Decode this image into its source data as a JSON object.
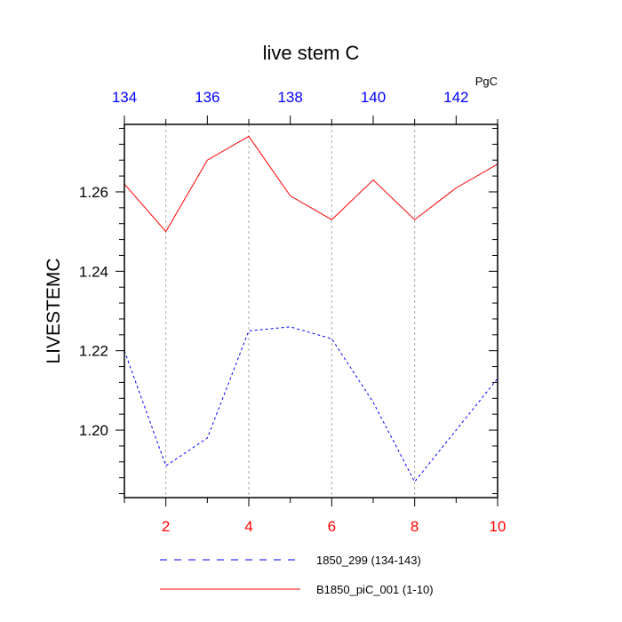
{
  "chart_data": {
    "type": "line",
    "title": "live stem C",
    "ylabel": "LIVESTEMC",
    "units": "PgC",
    "xlim": [
      1,
      10
    ],
    "ylim": [
      1.183,
      1.277
    ],
    "x_ticks": [
      2,
      4,
      6,
      8,
      10
    ],
    "x_tick_labels": [
      "2",
      "4",
      "6",
      "8",
      "10"
    ],
    "x_top_lim": [
      134,
      143
    ],
    "x_top_ticks": [
      134,
      136,
      138,
      140,
      142
    ],
    "x_top_tick_labels": [
      "134",
      "136",
      "138",
      "140",
      "142"
    ],
    "y_ticks": [
      1.2,
      1.22,
      1.24,
      1.26
    ],
    "y_tick_labels": [
      "1.20",
      "1.22",
      "1.24",
      "1.26"
    ],
    "grid_x": true,
    "legend_position": "bottom",
    "series": [
      {
        "name": "1850_299 (134-143)",
        "color": "#0000ff",
        "dash": "dashed",
        "x": [
          1,
          2,
          3,
          4,
          5,
          6,
          7,
          8,
          9,
          10
        ],
        "values": [
          1.22,
          1.191,
          1.198,
          1.225,
          1.226,
          1.223,
          1.207,
          1.187,
          1.2,
          1.213
        ]
      },
      {
        "name": "B1850_piC_001 (1-10)",
        "color": "#ff0000",
        "dash": "solid",
        "x": [
          1,
          2,
          3,
          4,
          5,
          6,
          7,
          8,
          9,
          10
        ],
        "values": [
          1.262,
          1.25,
          1.268,
          1.274,
          1.259,
          1.253,
          1.263,
          1.253,
          1.261,
          1.267
        ]
      }
    ]
  }
}
